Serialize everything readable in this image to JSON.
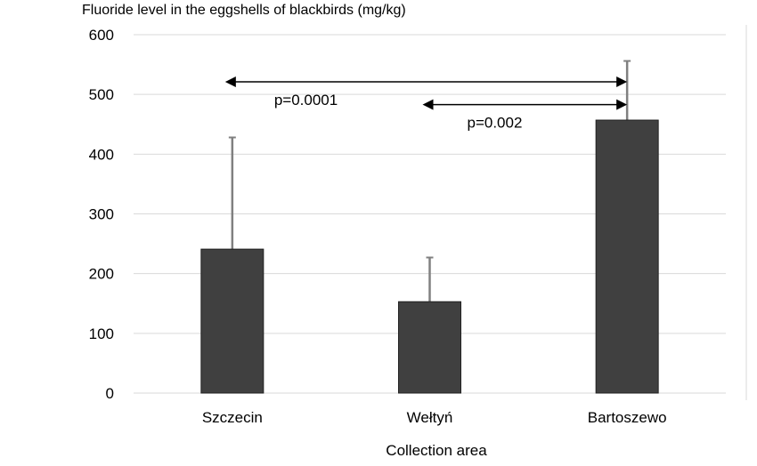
{
  "chart_data": {
    "type": "bar",
    "title": "",
    "ylabel": "Fluoride level in the eggshells of blackbirds (mg/kg)",
    "xlabel": "Collection area",
    "categories": [
      "Szczecin",
      "Wełtyń",
      "Bartoszewo"
    ],
    "values": [
      241,
      153,
      457
    ],
    "error_upper": [
      428,
      227,
      556
    ],
    "ylim": [
      0,
      600
    ],
    "yticks": [
      0,
      100,
      200,
      300,
      400,
      500,
      600
    ],
    "grid": true,
    "bar_color": "#404040",
    "error_color": "#808080",
    "annotations": [
      {
        "text": "p=0.0001",
        "from_category": "Szczecin",
        "to_category": "Bartoszewo",
        "y": 521
      },
      {
        "text": "p=0.002",
        "from_category": "Wełtyń",
        "to_category": "Bartoszewo",
        "y": 483
      }
    ]
  }
}
